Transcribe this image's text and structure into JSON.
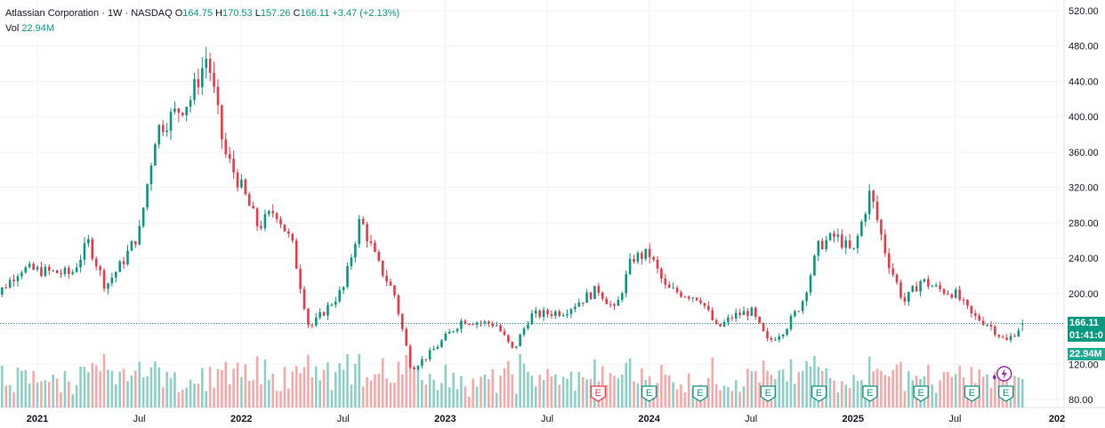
{
  "header": {
    "symbol_line": "Atlassian Corporation · 1W · NASDAQ",
    "open_label": "O",
    "open": "164.75",
    "high_label": "H",
    "high": "170.53",
    "low_label": "L",
    "low": "157.26",
    "close_label": "C",
    "close": "166.11",
    "change": "+3.47 (+2.13%)",
    "volume_label": "Vol",
    "volume": "22.94M"
  },
  "price_tags": {
    "last_price": "166.11",
    "countdown": "01:41:0",
    "volume": "22.94M"
  },
  "colors": {
    "up": "#089981",
    "down": "#F23645",
    "vol_up": "#8ED0C6",
    "vol_down": "#F5A9A9",
    "last_price_tag": "#089981",
    "volume_tag": "#22AB94",
    "earnings_badge": "#089981",
    "earnings_badge_negative": "#F23645",
    "grid": "#F0F3FA",
    "text": "#131722"
  },
  "chart_data": {
    "type": "candlestick",
    "interval": "1W",
    "price_ticks": [
      80,
      120,
      160,
      200,
      240,
      280,
      320,
      360,
      400,
      440,
      480,
      520
    ],
    "price_tick_labels": [
      "80.00",
      "120.00",
      "160.00",
      "200.00",
      "240.00",
      "280.00",
      "320.00",
      "360.00",
      "400.00",
      "440.00",
      "480.00",
      "520.00"
    ],
    "ylim": [
      76,
      522
    ],
    "time_labels": [
      "2021",
      "Jul",
      "2022",
      "Jul",
      "2023",
      "Jul",
      "2024",
      "Jul",
      "2025",
      "Jul",
      "202"
    ],
    "time_label_positions": [
      "2021-01",
      "2021-07",
      "2022-01",
      "2022-07",
      "2023-01",
      "2023-07",
      "2024-01",
      "2024-07",
      "2025-01",
      "2025-07",
      "2026-01"
    ],
    "last_price": 166.11,
    "price_path": [
      {
        "t": "2020-10",
        "p": 185
      },
      {
        "t": "2020-12",
        "p": 228
      },
      {
        "t": "2021-03",
        "p": 222
      },
      {
        "t": "2021-04",
        "p": 258
      },
      {
        "t": "2021-05",
        "p": 208
      },
      {
        "t": "2021-06",
        "p": 235
      },
      {
        "t": "2021-07",
        "p": 270
      },
      {
        "t": "2021-08",
        "p": 385
      },
      {
        "t": "2021-10",
        "p": 420
      },
      {
        "t": "2021-11",
        "p": 470
      },
      {
        "t": "2021-12",
        "p": 360
      },
      {
        "t": "2022-01",
        "p": 320
      },
      {
        "t": "2022-02",
        "p": 275
      },
      {
        "t": "2022-03",
        "p": 295
      },
      {
        "t": "2022-04",
        "p": 255
      },
      {
        "t": "2022-05",
        "p": 160
      },
      {
        "t": "2022-07",
        "p": 205
      },
      {
        "t": "2022-08",
        "p": 285
      },
      {
        "t": "2022-09",
        "p": 235
      },
      {
        "t": "2022-10",
        "p": 200
      },
      {
        "t": "2022-11",
        "p": 115
      },
      {
        "t": "2022-12",
        "p": 130
      },
      {
        "t": "2023-02",
        "p": 170
      },
      {
        "t": "2023-04",
        "p": 165
      },
      {
        "t": "2023-05",
        "p": 135
      },
      {
        "t": "2023-06",
        "p": 175
      },
      {
        "t": "2023-08",
        "p": 180
      },
      {
        "t": "2023-10",
        "p": 205
      },
      {
        "t": "2023-11",
        "p": 180
      },
      {
        "t": "2023-12",
        "p": 240
      },
      {
        "t": "2024-01",
        "p": 245
      },
      {
        "t": "2024-02",
        "p": 205
      },
      {
        "t": "2024-04",
        "p": 195
      },
      {
        "t": "2024-05",
        "p": 160
      },
      {
        "t": "2024-06",
        "p": 175
      },
      {
        "t": "2024-07",
        "p": 180
      },
      {
        "t": "2024-08",
        "p": 145
      },
      {
        "t": "2024-09",
        "p": 160
      },
      {
        "t": "2024-10",
        "p": 190
      },
      {
        "t": "2024-11",
        "p": 255
      },
      {
        "t": "2024-12",
        "p": 265
      },
      {
        "t": "2025-01",
        "p": 245
      },
      {
        "t": "2025-02",
        "p": 315
      },
      {
        "t": "2025-03",
        "p": 240
      },
      {
        "t": "2025-04",
        "p": 190
      },
      {
        "t": "2025-05",
        "p": 215
      },
      {
        "t": "2025-06",
        "p": 205
      },
      {
        "t": "2025-07",
        "p": 200
      },
      {
        "t": "2025-08",
        "p": 175
      },
      {
        "t": "2025-09",
        "p": 165
      },
      {
        "t": "2025-10",
        "p": 145
      },
      {
        "t": "2025-11",
        "p": 166
      }
    ],
    "earnings_markers": [
      {
        "label": "E",
        "date": "2023-10",
        "negative": true
      },
      {
        "label": "E",
        "date": "2024-01",
        "negative": false
      },
      {
        "label": "E",
        "date": "2024-04",
        "negative": false
      },
      {
        "label": "E",
        "date": "2024-08",
        "negative": false
      },
      {
        "label": "E",
        "date": "2024-11",
        "negative": false
      },
      {
        "label": "E",
        "date": "2025-02",
        "negative": false
      },
      {
        "label": "E",
        "date": "2025-05",
        "negative": false
      },
      {
        "label": "E",
        "date": "2025-08",
        "negative": false
      },
      {
        "label": "E",
        "date": "2025-10",
        "negative": false
      }
    ],
    "grid": true
  }
}
